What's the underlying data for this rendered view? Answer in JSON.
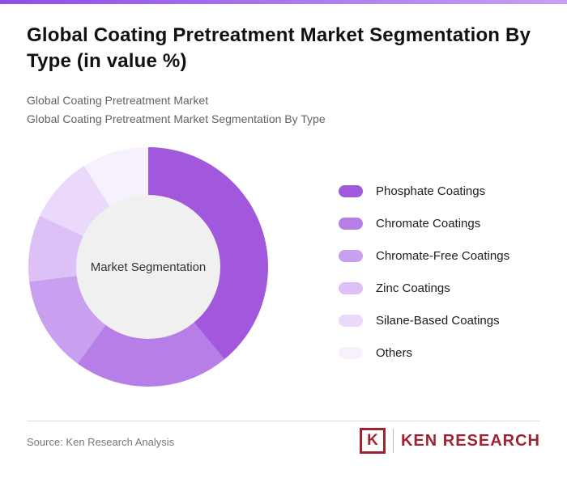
{
  "page": {
    "title": "Global Coating Pretreatment Market Segmentation By Type (in value %)",
    "subtitle_1": "Global Coating Pretreatment Market",
    "subtitle_2": "Global Coating Pretreatment Market Segmentation By Type",
    "source": "Source: Ken Research Analysis",
    "brand": {
      "logo_letter": "K",
      "name": "KEN RESEARCH",
      "color": "#9e2431"
    },
    "accent_bar": {
      "from": "#8d4de8",
      "to": "#c9a0f5"
    }
  },
  "chart_data": {
    "type": "pie",
    "donut": true,
    "title": "Global Coating Pretreatment Market Segmentation By Type (in value %)",
    "center_label": "Market Segmentation",
    "categories": [
      "Phosphate Coatings",
      "Chromate Coatings",
      "Chromate-Free Coatings",
      "Zinc Coatings",
      "Silane-Based Coatings",
      "Others"
    ],
    "values": [
      39,
      21,
      13,
      9,
      9,
      9
    ],
    "colors": [
      "#a158dd",
      "#b77ee8",
      "#c9a0ef",
      "#dcc0f6",
      "#ead9fa",
      "#f7f1fd"
    ],
    "legend_position": "right",
    "start_angle_deg": 0,
    "direction": "clockwise"
  }
}
